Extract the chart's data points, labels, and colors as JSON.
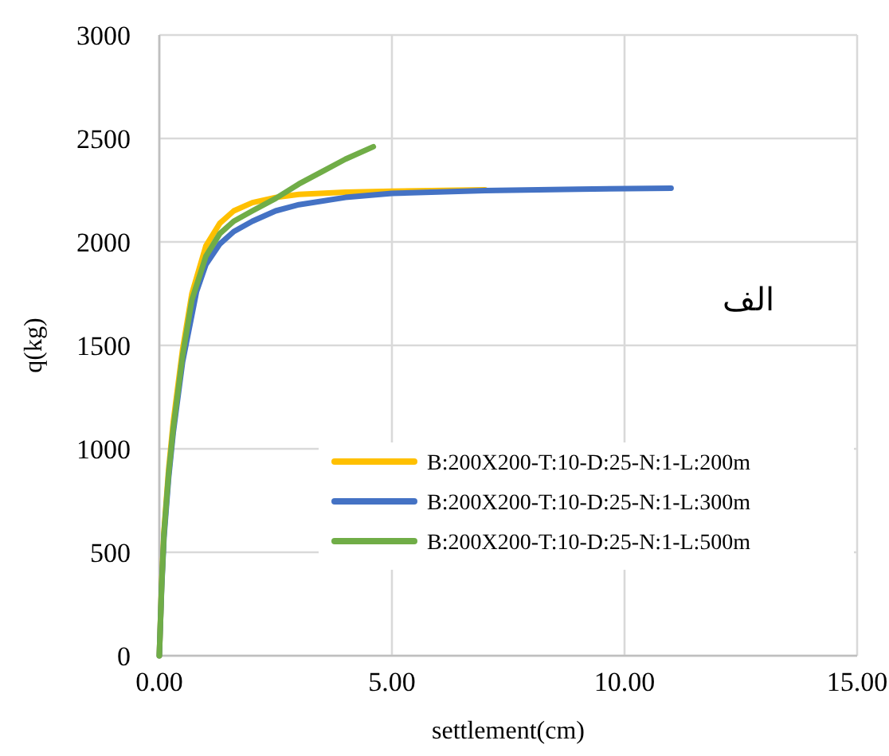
{
  "chart_data": {
    "type": "line",
    "xlabel": "settlement(cm)",
    "ylabel": "q(kg)",
    "annotations": [
      "الف"
    ],
    "xlim": [
      0,
      15
    ],
    "xticks": [
      {
        "value": 0,
        "label": "0.00"
      },
      {
        "value": 5,
        "label": "5.00"
      },
      {
        "value": 10,
        "label": "10.00"
      },
      {
        "value": 15,
        "label": "15.00"
      }
    ],
    "ylim": [
      0,
      3000
    ],
    "yticks": [
      0,
      500,
      1000,
      1500,
      2000,
      2500,
      3000
    ],
    "grid": true,
    "legend": "bottom right",
    "marker": "none",
    "line_style": "solid",
    "series": [
      {
        "name": "B:200X200-T:10-D:25-N:1-L:200m",
        "color": "#ffc000",
        "x": [
          0,
          0.05,
          0.1,
          0.2,
          0.3,
          0.5,
          0.7,
          1.0,
          1.3,
          1.6,
          2.0,
          2.5,
          3,
          4,
          5,
          7
        ],
        "values": [
          0,
          350,
          600,
          900,
          1130,
          1480,
          1750,
          1980,
          2090,
          2150,
          2190,
          2215,
          2230,
          2240,
          2245,
          2252
        ]
      },
      {
        "name": "B:200X200-T:10-D:25-N:1-L:300m",
        "color": "#4472c4",
        "x": [
          0,
          0.05,
          0.1,
          0.2,
          0.3,
          0.5,
          0.8,
          1.0,
          1.3,
          1.6,
          2.0,
          2.5,
          3,
          4,
          5,
          7,
          9,
          11
        ],
        "values": [
          0,
          330,
          570,
          860,
          1080,
          1420,
          1760,
          1890,
          1990,
          2050,
          2100,
          2150,
          2180,
          2215,
          2235,
          2248,
          2255,
          2260
        ]
      },
      {
        "name": "B:200X200-T:10-D:25-N:1-L:500m",
        "color": "#70ad47",
        "x": [
          0,
          0.05,
          0.1,
          0.2,
          0.3,
          0.5,
          0.7,
          1.0,
          1.3,
          1.6,
          2.0,
          2.5,
          3,
          3.5,
          4,
          4.6
        ],
        "values": [
          0,
          340,
          590,
          880,
          1100,
          1450,
          1720,
          1930,
          2040,
          2100,
          2150,
          2210,
          2280,
          2340,
          2400,
          2460
        ]
      }
    ]
  }
}
